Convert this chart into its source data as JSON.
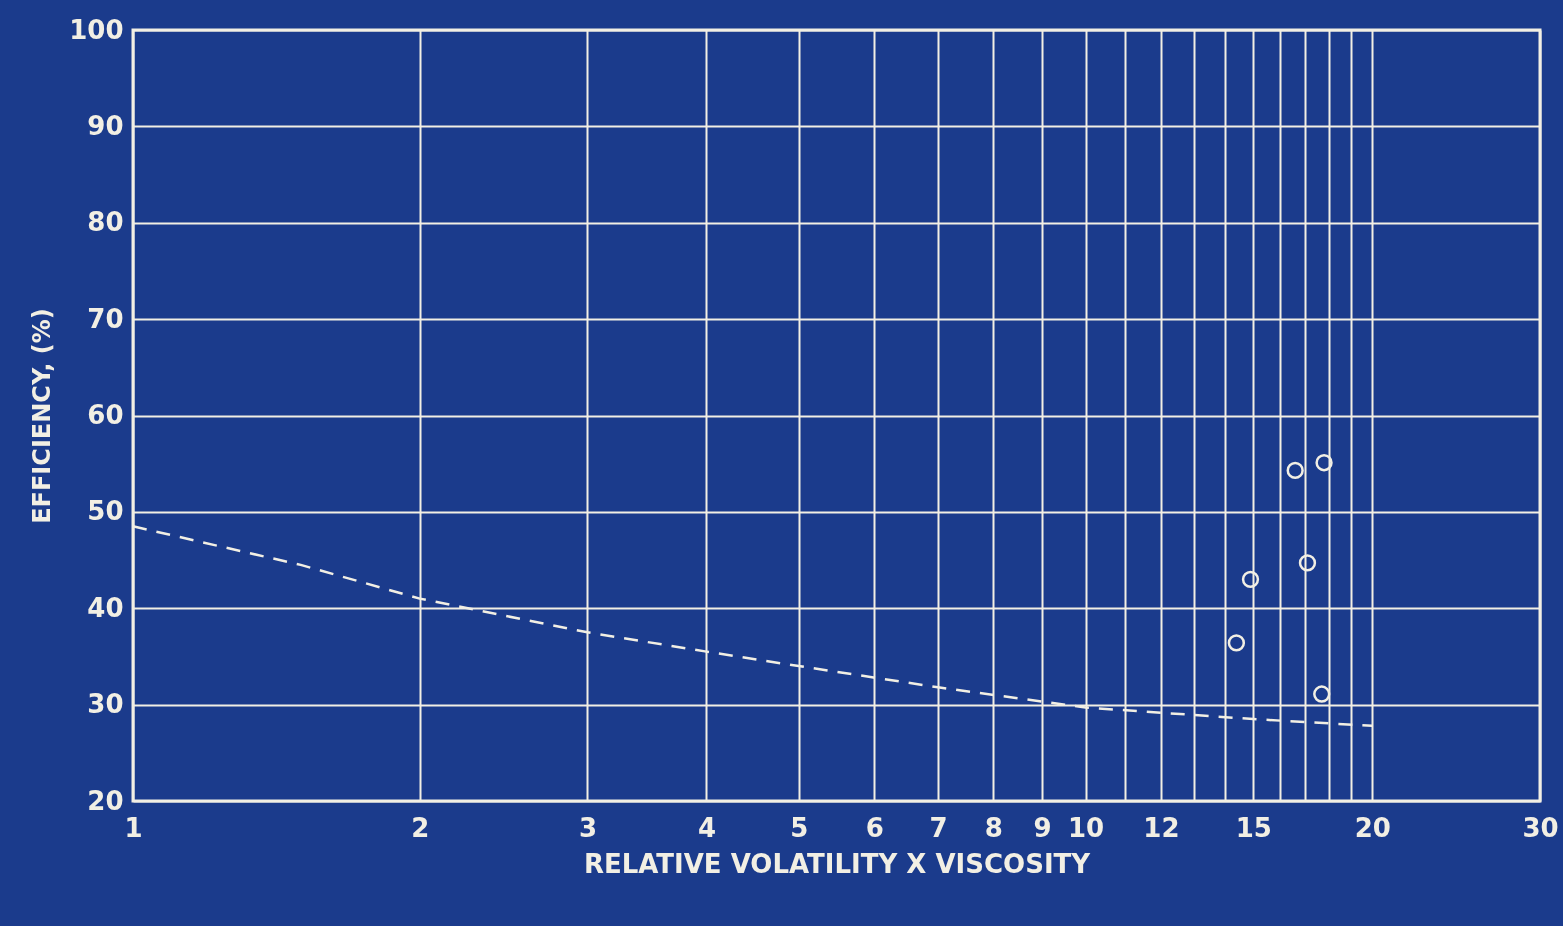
{
  "chart_data": {
    "type": "scatter",
    "xlabel": "RELATIVE VOLATILITY X VISCOSITY",
    "ylabel": "EFFICIENCY, (%)",
    "log": "x",
    "xlim": [
      1,
      30
    ],
    "ylim": [
      20,
      100
    ],
    "xticks": [
      1,
      2,
      3,
      4,
      5,
      6,
      7,
      8,
      9,
      10,
      {
        "value": 11,
        "label": null
      },
      12,
      {
        "value": 13,
        "label": null
      },
      {
        "value": 14,
        "label": null
      },
      15,
      {
        "value": 16,
        "label": null
      },
      {
        "value": 17,
        "label": null
      },
      {
        "value": 18,
        "label": null
      },
      {
        "value": 19,
        "label": null
      },
      20,
      30
    ],
    "yticks": [
      20,
      30,
      40,
      50,
      60,
      70,
      80,
      90,
      100
    ],
    "grid": true,
    "marker": "circle",
    "series": [
      {
        "type": "line",
        "line_style": "dashed",
        "marker": "none",
        "color": "#f2efe4",
        "x": [
          1,
          1.5,
          2,
          3,
          4,
          5,
          7,
          10,
          15,
          20
        ],
        "values": [
          48.5,
          44.5,
          41,
          37.5,
          35.5,
          34,
          31.8,
          29.7,
          28.5,
          27.8
        ]
      },
      {
        "color": "#f2efe4",
        "x": [
          14.4,
          14.9,
          16.6,
          17.8,
          17.1,
          17.7
        ],
        "values": [
          36.4,
          43,
          54.3,
          55.1,
          44.7,
          31.1
        ]
      }
    ]
  }
}
